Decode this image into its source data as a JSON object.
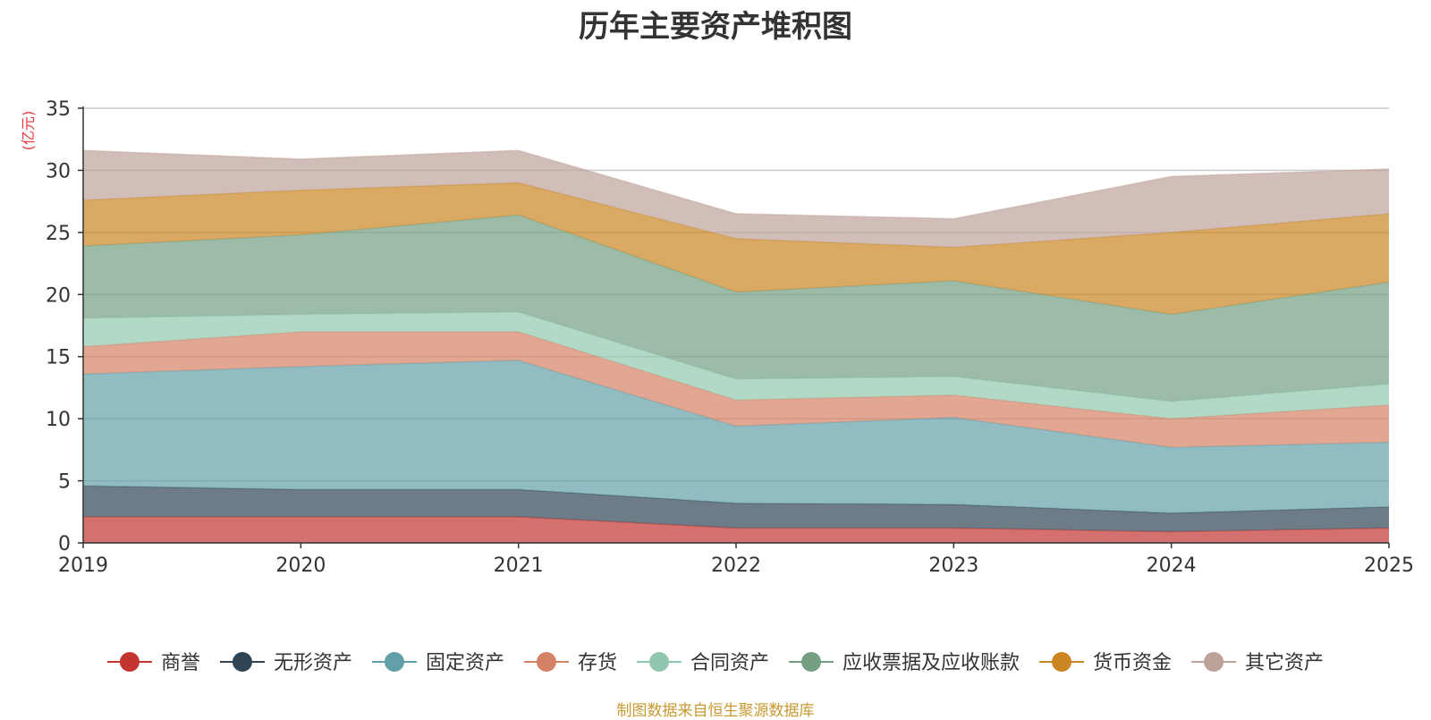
{
  "chart_data": {
    "type": "area",
    "stacked": true,
    "title": "历年主要资产堆积图",
    "ylabel": "(亿元)",
    "ylim": [
      0,
      35
    ],
    "yticks": [
      0,
      5,
      10,
      15,
      20,
      25,
      30,
      35
    ],
    "categories": [
      "2019",
      "2020",
      "2021",
      "2022",
      "2023",
      "2024",
      "2025"
    ],
    "grid": true,
    "legend_position": "bottom",
    "series": [
      {
        "name": "商誉",
        "color": "#c23531",
        "values": [
          2.1,
          2.1,
          2.1,
          1.2,
          1.2,
          0.9,
          1.2
        ]
      },
      {
        "name": "无形资产",
        "color": "#2f4554",
        "values": [
          2.5,
          2.2,
          2.2,
          2.0,
          1.9,
          1.5,
          1.7
        ]
      },
      {
        "name": "固定资产",
        "color": "#61a0a8",
        "values": [
          9.0,
          9.9,
          10.4,
          6.2,
          7.0,
          5.3,
          5.2
        ]
      },
      {
        "name": "存货",
        "color": "#d48265",
        "values": [
          2.2,
          2.8,
          2.3,
          2.1,
          1.8,
          2.3,
          3.0
        ]
      },
      {
        "name": "合同资产",
        "color": "#91c7ae",
        "values": [
          2.3,
          1.4,
          1.6,
          1.7,
          1.5,
          1.4,
          1.7
        ]
      },
      {
        "name": "应收票据及应收账款",
        "color": "#749f83",
        "values": [
          5.8,
          6.4,
          7.8,
          7.0,
          7.7,
          7.0,
          8.2
        ]
      },
      {
        "name": "货币资金",
        "color": "#ca8622",
        "values": [
          3.7,
          3.6,
          2.6,
          4.3,
          2.7,
          6.6,
          5.5
        ]
      },
      {
        "name": "其它资产",
        "color": "#bda29a",
        "values": [
          4.0,
          2.5,
          2.6,
          2.0,
          2.3,
          4.5,
          3.6
        ]
      }
    ]
  },
  "source_note": "制图数据来自恒生聚源数据库",
  "colors": {
    "unit_label": "#e8393b",
    "source_note": "#c99a32",
    "axis": "#333333",
    "grid": "#cccccc"
  }
}
